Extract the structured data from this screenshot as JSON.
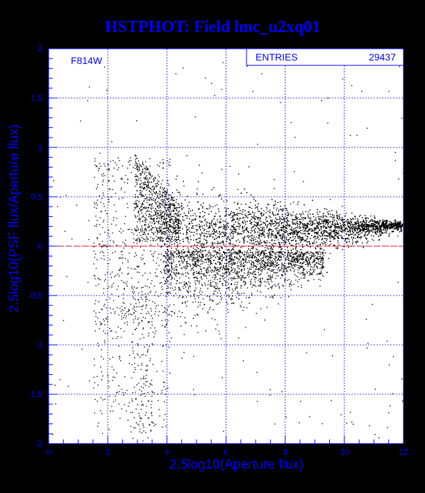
{
  "chart_data": {
    "type": "scatter",
    "title": "HSTPHOT: Field lmc_u2xq01",
    "xlabel": "2.5log10(Aperture flux)",
    "ylabel": "2.5log10(PSF flux/Aperture flux)",
    "xlim": [
      0,
      12
    ],
    "ylim": [
      -2,
      2
    ],
    "x_ticks": [
      0,
      2,
      4,
      6,
      8,
      10,
      12
    ],
    "y_ticks": [
      -2,
      -1.5,
      -1,
      -0.5,
      0,
      0.5,
      1,
      1.5,
      2
    ],
    "x_tick_labels": [
      "0",
      "2",
      "4",
      "6",
      "8",
      "10",
      "12"
    ],
    "y_tick_labels": [
      "-2",
      "-1.5",
      "-1",
      "-0.5",
      "0",
      "0.5",
      "1",
      "1.5",
      "2"
    ],
    "grid": true,
    "filter_label": "F814W",
    "stats_box": {
      "label": "ENTRIES",
      "value": "29437"
    },
    "reference_line": {
      "y": 0,
      "color": "#ff0000",
      "style": "dashed"
    },
    "entries": 29437,
    "colors": {
      "background": "#ffffff",
      "outer_background": "#000000",
      "axis": "#0000ff",
      "grid": "#0000ff",
      "points": "#000000",
      "title": "#0000ff"
    }
  }
}
